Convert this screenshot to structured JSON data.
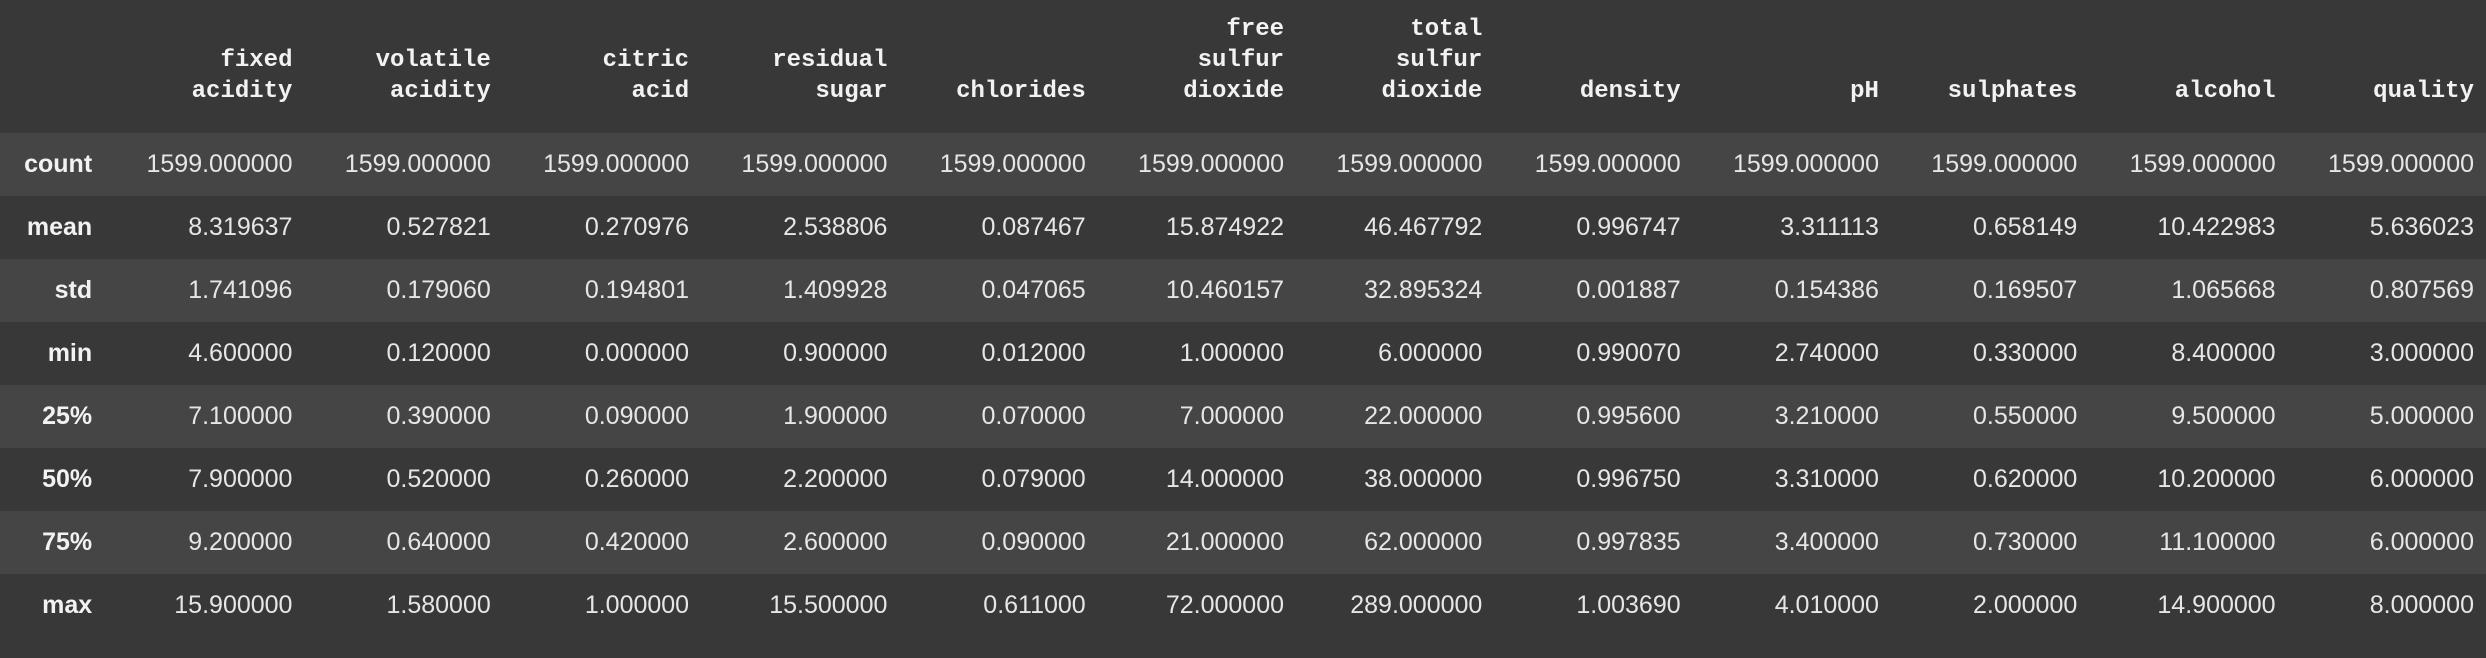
{
  "table": {
    "columns": [
      [
        "fixed",
        "acidity"
      ],
      [
        "volatile",
        "acidity"
      ],
      [
        "citric",
        "acid"
      ],
      [
        "residual",
        "sugar"
      ],
      [
        "chlorides"
      ],
      [
        "free",
        "sulfur",
        "dioxide"
      ],
      [
        "total",
        "sulfur",
        "dioxide"
      ],
      [
        "density"
      ],
      [
        "pH"
      ],
      [
        "sulphates"
      ],
      [
        "alcohol"
      ],
      [
        "quality"
      ]
    ],
    "rows": [
      {
        "label": "count",
        "values": [
          "1599.000000",
          "1599.000000",
          "1599.000000",
          "1599.000000",
          "1599.000000",
          "1599.000000",
          "1599.000000",
          "1599.000000",
          "1599.000000",
          "1599.000000",
          "1599.000000",
          "1599.000000"
        ]
      },
      {
        "label": "mean",
        "values": [
          "8.319637",
          "0.527821",
          "0.270976",
          "2.538806",
          "0.087467",
          "15.874922",
          "46.467792",
          "0.996747",
          "3.311113",
          "0.658149",
          "10.422983",
          "5.636023"
        ]
      },
      {
        "label": "std",
        "values": [
          "1.741096",
          "0.179060",
          "0.194801",
          "1.409928",
          "0.047065",
          "10.460157",
          "32.895324",
          "0.001887",
          "0.154386",
          "0.169507",
          "1.065668",
          "0.807569"
        ]
      },
      {
        "label": "min",
        "values": [
          "4.600000",
          "0.120000",
          "0.000000",
          "0.900000",
          "0.012000",
          "1.000000",
          "6.000000",
          "0.990070",
          "2.740000",
          "0.330000",
          "8.400000",
          "3.000000"
        ]
      },
      {
        "label": "25%",
        "values": [
          "7.100000",
          "0.390000",
          "0.090000",
          "1.900000",
          "0.070000",
          "7.000000",
          "22.000000",
          "0.995600",
          "3.210000",
          "0.550000",
          "9.500000",
          "5.000000"
        ]
      },
      {
        "label": "50%",
        "values": [
          "7.900000",
          "0.520000",
          "0.260000",
          "2.200000",
          "0.079000",
          "14.000000",
          "38.000000",
          "0.996750",
          "3.310000",
          "0.620000",
          "10.200000",
          "6.000000"
        ]
      },
      {
        "label": "75%",
        "values": [
          "9.200000",
          "0.640000",
          "0.420000",
          "2.600000",
          "0.090000",
          "21.000000",
          "62.000000",
          "0.997835",
          "3.400000",
          "0.730000",
          "11.100000",
          "6.000000"
        ]
      },
      {
        "label": "max",
        "values": [
          "15.900000",
          "1.580000",
          "1.000000",
          "15.500000",
          "0.611000",
          "72.000000",
          "289.000000",
          "1.003690",
          "4.010000",
          "2.000000",
          "14.900000",
          "8.000000"
        ]
      }
    ]
  }
}
